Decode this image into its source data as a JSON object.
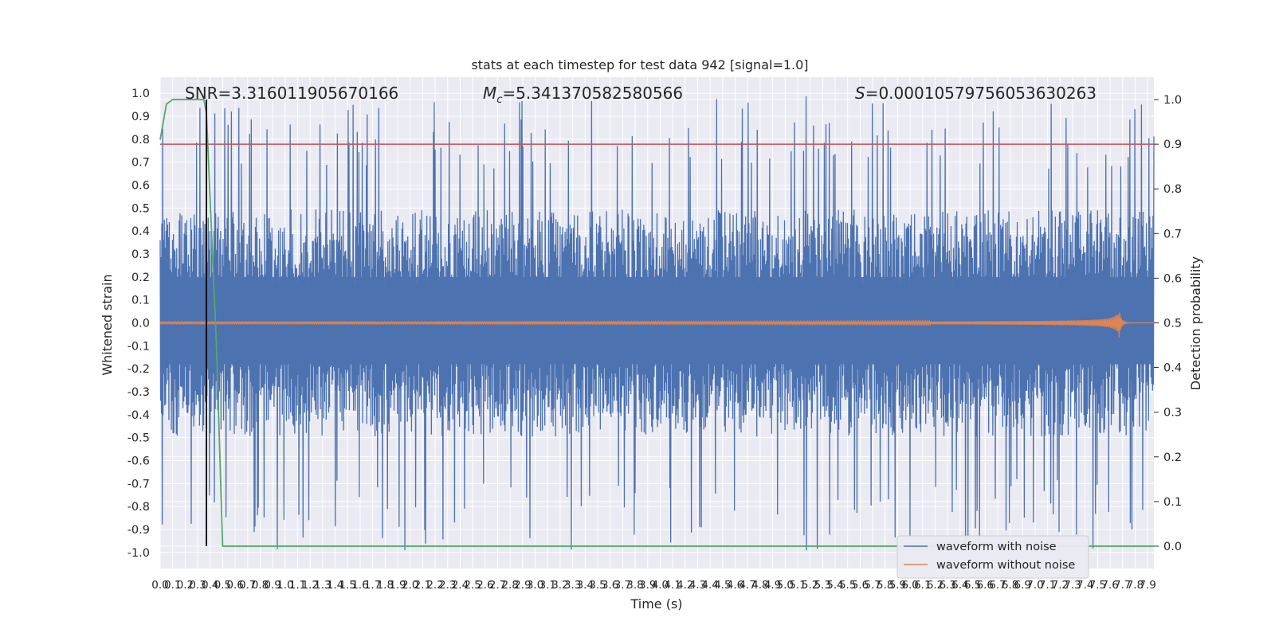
{
  "chart_data": {
    "type": "line",
    "title": "stats at each timestep for test data 942 [signal=1.0]",
    "xlabel": "Time (s)",
    "ylabel": "Whitened strain",
    "ylabel_right": "Detection probability",
    "xlim": [
      0.0,
      7.95
    ],
    "ylim": [
      -1.07,
      1.07
    ],
    "ylim_right": [
      -0.05,
      1.05
    ],
    "grid": true,
    "legend_position": "lower right",
    "x_ticks": [
      "0.0",
      "0.1",
      "0.2",
      "0.3",
      "0.4",
      "0.5",
      "0.6",
      "0.7",
      "0.8",
      "0.9",
      "1.0",
      "1.1",
      "1.2",
      "1.3",
      "1.4",
      "1.5",
      "1.6",
      "1.7",
      "1.8",
      "1.9",
      "2.0",
      "2.1",
      "2.2",
      "2.3",
      "2.4",
      "2.5",
      "2.6",
      "2.7",
      "2.8",
      "2.9",
      "3.0",
      "3.1",
      "3.2",
      "3.3",
      "3.4",
      "3.5",
      "3.6",
      "3.7",
      "3.8",
      "3.9",
      "4.0",
      "4.1",
      "4.2",
      "4.3",
      "4.4",
      "4.5",
      "4.6",
      "4.7",
      "4.8",
      "4.9",
      "5.0",
      "5.1",
      "5.2",
      "5.3",
      "5.4",
      "5.5",
      "5.6",
      "5.7",
      "5.8",
      "5.9",
      "6.0",
      "6.1",
      "6.2",
      "6.3",
      "6.4",
      "6.5",
      "6.6",
      "6.7",
      "6.8",
      "6.9",
      "7.0",
      "7.1",
      "7.2",
      "7.3",
      "7.4",
      "7.5",
      "7.6",
      "7.7",
      "7.8",
      "7.9"
    ],
    "y_ticks_left": [
      "-1.0",
      "-0.9",
      "-0.8",
      "-0.7",
      "-0.6",
      "-0.5",
      "-0.4",
      "-0.3",
      "-0.2",
      "-0.1",
      "0.0",
      "0.1",
      "0.2",
      "0.3",
      "0.4",
      "0.5",
      "0.6",
      "0.7",
      "0.8",
      "0.9",
      "1.0"
    ],
    "y_ticks_right": [
      "0.0",
      "0.1",
      "0.2",
      "0.3",
      "0.4",
      "0.5",
      "0.6",
      "0.7",
      "0.8",
      "0.9",
      "1.0"
    ],
    "annotations": {
      "snr": "SNR=3.316011905670166",
      "mc": "=5.341370582580566",
      "mc_symbol": "M",
      "mc_sub": "c",
      "s": "=0.00010579756053630263",
      "s_symbol": "S"
    },
    "threshold_right": 0.9,
    "marker_x": 0.37,
    "series": [
      {
        "name": "waveform with noise",
        "color": "#4c72b0",
        "envelope_typical": 0.45,
        "peak_max": 1.0,
        "peak_min": -1.0
      },
      {
        "name": "waveform without noise",
        "color": "#dd8452",
        "merger_time": 7.67,
        "peak_amplitude": 0.07
      },
      {
        "color": "#55a868",
        "axis": "right",
        "x": [
          0.0,
          0.05,
          0.1,
          0.15,
          0.2,
          0.25,
          0.3,
          0.35,
          0.37,
          0.45,
          0.5,
          7.95
        ],
        "values": [
          0.91,
          0.99,
          1.0,
          1.0,
          1.0,
          1.0,
          1.0,
          1.0,
          0.97,
          0.45,
          0.0,
          0.0
        ]
      }
    ],
    "threshold_color": "#c44e52",
    "marker_color": "#000000"
  }
}
